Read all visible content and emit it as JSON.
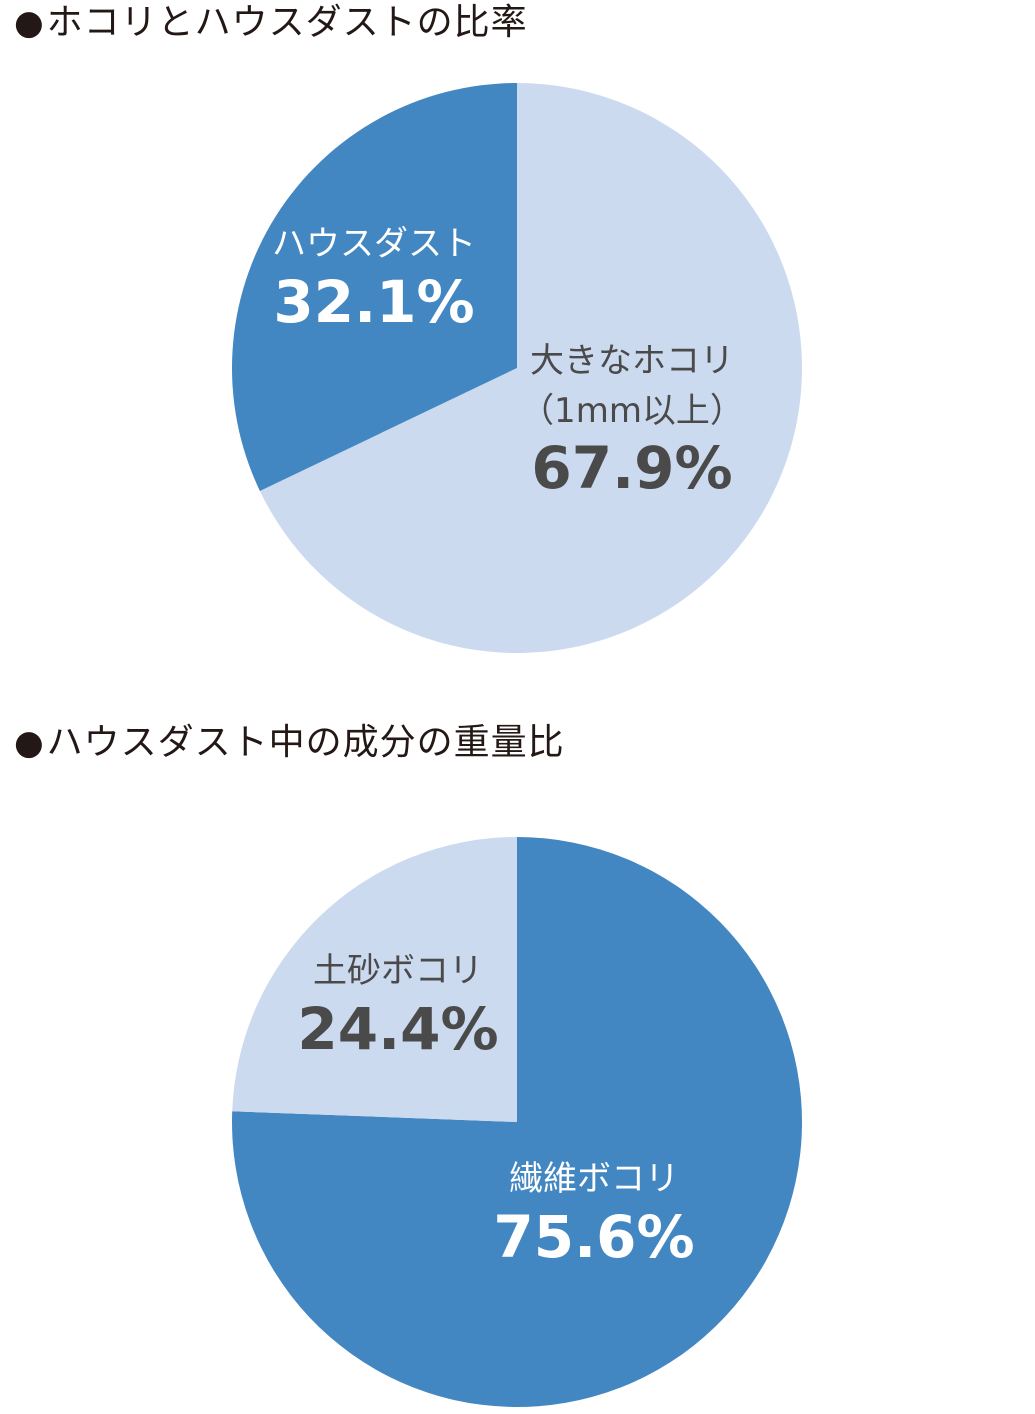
{
  "colors": {
    "dark_blue": "#4387c2",
    "light_blue": "#cbdaef",
    "label_on_dark": "#ffffff",
    "label_on_light": "#4a4a4a",
    "title_text": "#231815"
  },
  "chart_data": [
    {
      "type": "pie",
      "title": "ホコリとハウスダストの比率",
      "legend": "none",
      "slices": [
        {
          "label_lines": [
            "大きなホコリ",
            "（1mm以上）"
          ],
          "value": 67.9,
          "value_label": "67.9%",
          "color": "#cbdaef"
        },
        {
          "label_lines": [
            "ハウスダスト"
          ],
          "value": 32.1,
          "value_label": "32.1%",
          "color": "#4387c2"
        }
      ]
    },
    {
      "type": "pie",
      "title": "ハウスダスト中の成分の重量比",
      "legend": "none",
      "slices": [
        {
          "label_lines": [
            "繊維ボコリ"
          ],
          "value": 75.6,
          "value_label": "75.6%",
          "color": "#4387c2"
        },
        {
          "label_lines": [
            "土砂ボコリ"
          ],
          "value": 24.4,
          "value_label": "24.4%",
          "color": "#cbdaef"
        }
      ]
    }
  ]
}
